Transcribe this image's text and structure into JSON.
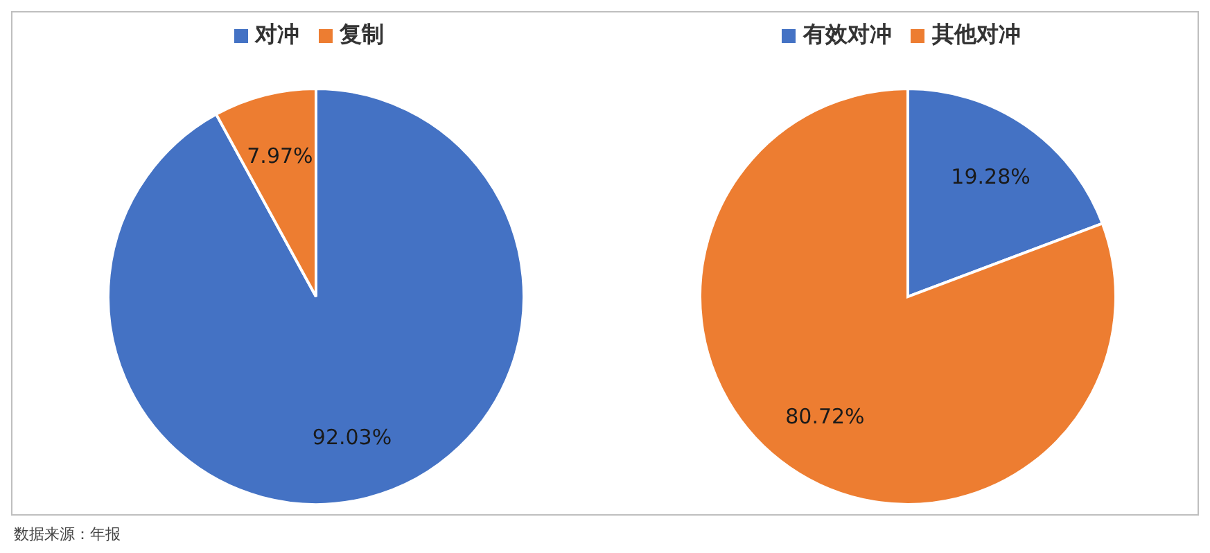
{
  "chart_data": [
    {
      "type": "pie",
      "categories": [
        "对冲",
        "复制"
      ],
      "values": [
        92.03,
        7.97
      ],
      "colors": [
        "#4472c4",
        "#ed7d31"
      ],
      "value_labels": [
        "92.03%",
        "7.97%"
      ],
      "legend": "top",
      "annotations": [
        "数据来源：年报"
      ]
    },
    {
      "type": "pie",
      "categories": [
        "有效对冲",
        "其他对冲"
      ],
      "values": [
        19.28,
        80.72
      ],
      "colors": [
        "#4472c4",
        "#ed7d31"
      ],
      "value_labels": [
        "19.28%",
        "80.72%"
      ],
      "legend": "top"
    }
  ]
}
